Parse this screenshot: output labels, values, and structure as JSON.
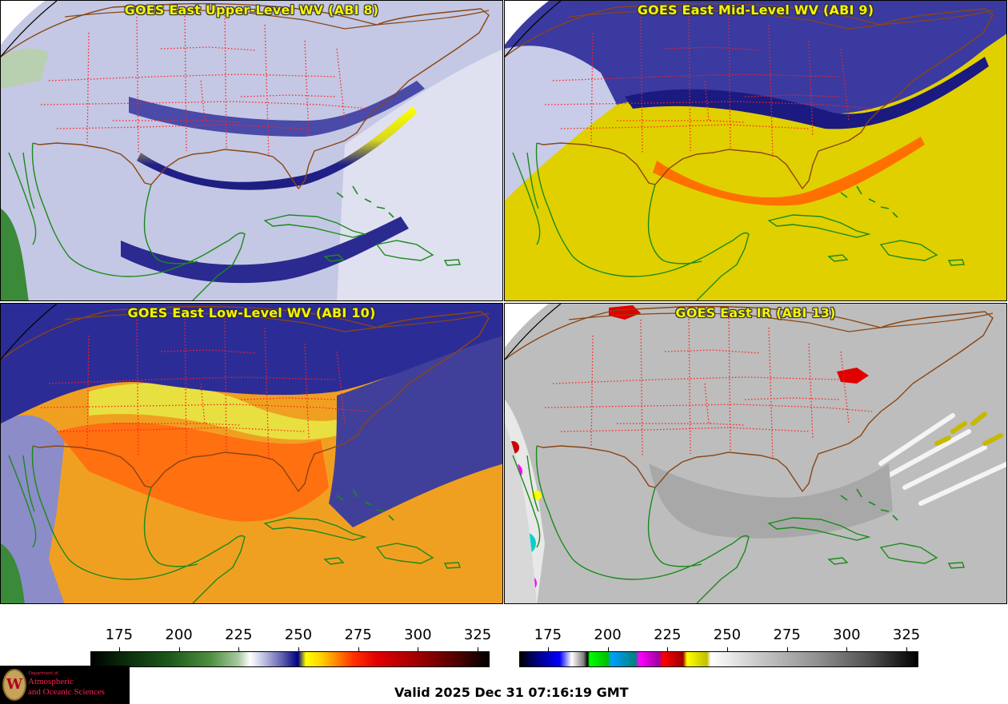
{
  "panels": [
    {
      "id": "p1",
      "title": "GOES East Upper-Level WV (ABI 8)",
      "style": "wv-upper"
    },
    {
      "id": "p2",
      "title": "GOES East Mid-Level WV (ABI 9)",
      "style": "wv-mid"
    },
    {
      "id": "p3",
      "title": "GOES East Low-Level WV (ABI 10)",
      "style": "wv-low"
    },
    {
      "id": "p4",
      "title": "GOES East IR (ABI 13)",
      "style": "ir"
    }
  ],
  "colorbars": {
    "wv": {
      "ticks": [
        "175",
        "200",
        "225",
        "250",
        "275",
        "300",
        "325"
      ],
      "range": [
        163,
        330
      ]
    },
    "ir": {
      "ticks": [
        "175",
        "200",
        "225",
        "250",
        "275",
        "300",
        "325"
      ],
      "range": [
        163,
        330
      ]
    }
  },
  "logo": {
    "dept": "Department of",
    "line1": "Atmospheric",
    "line2": "and Oceanic Sciences",
    "seal": "W"
  },
  "valid_time": "Valid 2025 Dec 31 07:16:19 GMT",
  "colors": {
    "title_text": "#f4f400",
    "state_borders": "#ff2020",
    "coastlines_us": "#8b4513",
    "coastlines_other": "#1a8a1a"
  }
}
